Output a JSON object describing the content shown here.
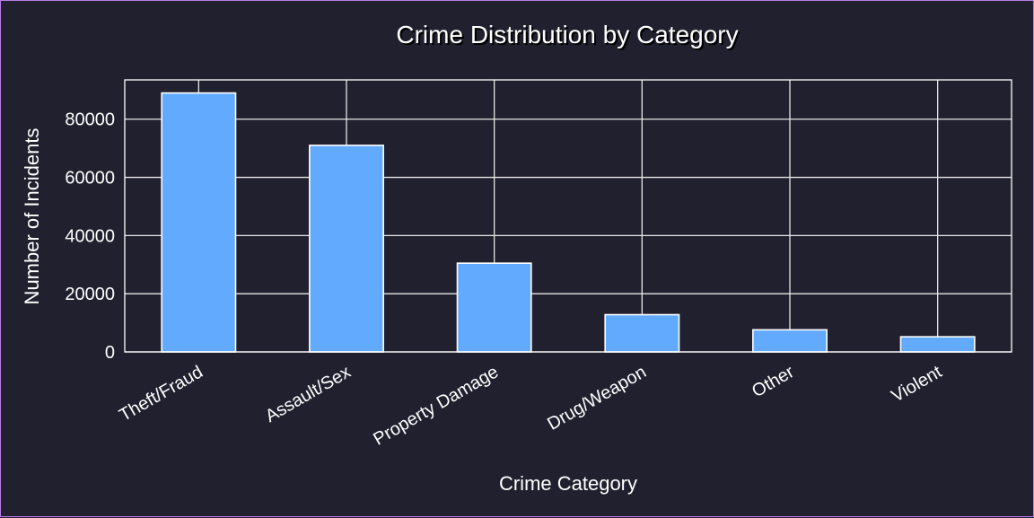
{
  "chart_data": {
    "type": "bar",
    "title": "Crime Distribution by Category",
    "xlabel": "Crime Category",
    "ylabel": "Number of Incidents",
    "categories": [
      "Theft/Fraud",
      "Assault/Sex",
      "Property Damage",
      "Drug/Weapon",
      "Other",
      "Violent"
    ],
    "values": [
      89000,
      71000,
      30500,
      12800,
      7600,
      5200
    ],
    "ylim": [
      0,
      93500
    ],
    "yticks": [
      0,
      20000,
      40000,
      60000,
      80000
    ],
    "ytick_labels": [
      "0",
      "20000",
      "40000",
      "60000",
      "80000"
    ],
    "grid": true,
    "bar_color": "#62aafe",
    "background_color": "#21202e",
    "text_color": "#ffffff"
  }
}
